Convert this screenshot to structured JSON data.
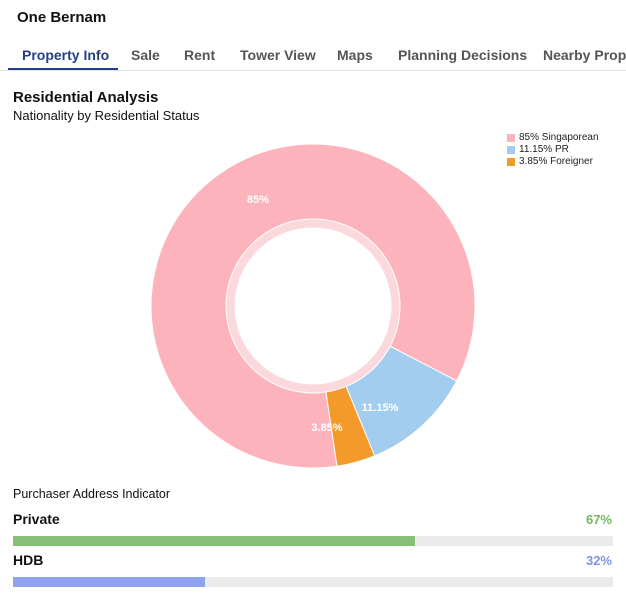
{
  "header": {
    "title": "One Bernam"
  },
  "tabs": [
    {
      "label": "Property Info",
      "active": true
    },
    {
      "label": "Sale"
    },
    {
      "label": "Rent"
    },
    {
      "label": "Tower View"
    },
    {
      "label": "Maps"
    },
    {
      "label": "Planning Decisions"
    },
    {
      "label": "Nearby Prop"
    }
  ],
  "analysis": {
    "title": "Residential Analysis",
    "subtitle": "Nationality by Residential Status"
  },
  "chart_data": {
    "type": "pie",
    "subtype": "donut",
    "categories": [
      "Singaporean",
      "PR",
      "Foreigner"
    ],
    "values": [
      85,
      11.15,
      3.85
    ],
    "slice_labels": [
      "85%",
      "11.15%",
      "3.85%"
    ],
    "legend": [
      "85% Singaporean",
      "11.15% PR",
      "3.85% Foreigner"
    ],
    "legend_position": "top-right",
    "colors": [
      "#fdb3bb",
      "#a2cdee",
      "#f49a2a"
    ]
  },
  "purchaser": {
    "label": "Purchaser Address Indicator",
    "rows": [
      {
        "label": "Private",
        "value_text": "67%",
        "fraction": 0.67,
        "color": "#88bf77",
        "text_color": "#77b45f"
      },
      {
        "label": "HDB",
        "value_text": "32%",
        "fraction": 0.32,
        "color": "#8ea2ef",
        "text_color": "#7f93e6"
      }
    ]
  }
}
